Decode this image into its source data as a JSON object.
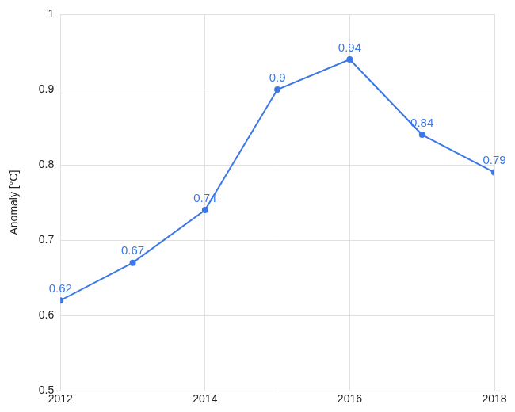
{
  "chart_data": {
    "type": "line",
    "y_label": "Anomaly [°C]",
    "x": [
      2012,
      2013,
      2014,
      2015,
      2016,
      2017,
      2018
    ],
    "values": [
      0.62,
      0.67,
      0.74,
      0.9,
      0.94,
      0.84,
      0.79
    ],
    "color": "#3c78e6",
    "xlim": [
      2012,
      2018
    ],
    "xticks": [
      2012,
      2014,
      2016,
      2018
    ],
    "ylim": [
      0.5,
      1
    ],
    "yticks": [
      0.5,
      0.6,
      0.7,
      0.8,
      0.9,
      1
    ],
    "grid": true,
    "data_labels": true,
    "marker": "circle",
    "line_style": "solid"
  }
}
